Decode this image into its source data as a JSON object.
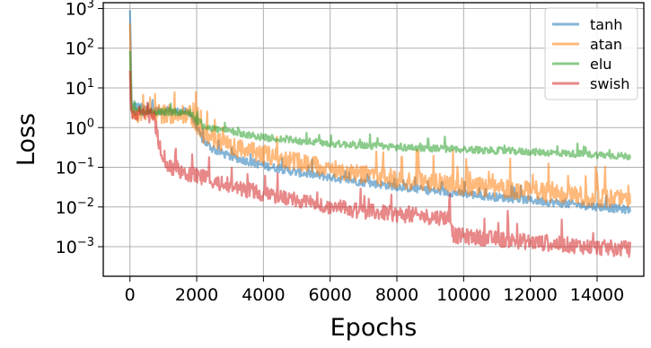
{
  "chart_data": {
    "type": "line",
    "xlabel": "Epochs",
    "ylabel": "Loss",
    "y_scale": "log",
    "xlim": [
      -800,
      15400
    ],
    "ylim": [
      0.00018,
      1400
    ],
    "xticks": [
      {
        "value": 0,
        "label": "0"
      },
      {
        "value": 2000,
        "label": "2000"
      },
      {
        "value": 4000,
        "label": "4000"
      },
      {
        "value": 6000,
        "label": "6000"
      },
      {
        "value": 8000,
        "label": "8000"
      },
      {
        "value": 10000,
        "label": "10000"
      },
      {
        "value": 12000,
        "label": "12000"
      },
      {
        "value": 14000,
        "label": "14000"
      }
    ],
    "yticks": [
      {
        "value": 0.001,
        "base": "10",
        "exp": "−3"
      },
      {
        "value": 0.01,
        "base": "10",
        "exp": "−2"
      },
      {
        "value": 0.1,
        "base": "10",
        "exp": "−1"
      },
      {
        "value": 1,
        "base": "10",
        "exp": "0"
      },
      {
        "value": 10,
        "base": "10",
        "exp": "1"
      },
      {
        "value": 100,
        "base": "10",
        "exp": "2"
      },
      {
        "value": 1000,
        "base": "10",
        "exp": "3"
      }
    ],
    "grid": true,
    "legend_position": "top-right",
    "series": [
      {
        "name": "tanh",
        "color": "#1f77b4",
        "x": [
          0,
          20,
          50,
          100,
          300,
          800,
          1500,
          1800,
          2000,
          2200,
          2500,
          3000,
          4000,
          5000,
          6000,
          7000,
          8000,
          9000,
          10000,
          11000,
          12000,
          13000,
          14000,
          15000
        ],
        "y": [
          900,
          200,
          3.5,
          3.8,
          3.5,
          2.8,
          2.7,
          2.6,
          1.0,
          0.5,
          0.3,
          0.2,
          0.12,
          0.08,
          0.06,
          0.045,
          0.035,
          0.028,
          0.023,
          0.019,
          0.016,
          0.013,
          0.011,
          0.009
        ],
        "noise": [
          1.6,
          1.6,
          1.6,
          1.6,
          1.6,
          1.6,
          1.6,
          1.6,
          1.6,
          1.6,
          1.6,
          1.6,
          1.6,
          1.6,
          1.6,
          1.6,
          1.6,
          1.6,
          1.6,
          1.6,
          1.6,
          1.6,
          1.6,
          1.6
        ]
      },
      {
        "name": "atan",
        "color": "#ff7f0e",
        "x": [
          0,
          20,
          50,
          100,
          300,
          800,
          1500,
          1800,
          2000,
          2200,
          2500,
          3000,
          4000,
          5000,
          6000,
          7000,
          8000,
          9000,
          10000,
          11000,
          12000,
          13000,
          14000,
          15000
        ],
        "y": [
          300,
          60,
          2.9,
          2.8,
          2.7,
          2.6,
          2.6,
          2.5,
          1.4,
          0.8,
          0.55,
          0.4,
          0.25,
          0.16,
          0.11,
          0.08,
          0.06,
          0.05,
          0.04,
          0.035,
          0.03,
          0.025,
          0.02,
          0.018
        ],
        "noise": [
          3.0,
          3.0,
          3.0,
          3.0,
          3.0,
          3.0,
          3.0,
          3.0,
          3.0,
          3.0,
          3.0,
          3.0,
          3.0,
          3.0,
          3.0,
          3.0,
          3.0,
          3.0,
          3.0,
          3.0,
          3.0,
          3.0,
          3.0,
          3.0
        ]
      },
      {
        "name": "elu",
        "color": "#2ca02c",
        "x": [
          0,
          20,
          50,
          100,
          300,
          800,
          1500,
          1800,
          2000,
          2200,
          2500,
          3000,
          4000,
          5000,
          6000,
          7000,
          8000,
          9000,
          10000,
          11000,
          12000,
          13000,
          14000,
          15000
        ],
        "y": [
          100,
          25,
          2.7,
          2.6,
          2.6,
          2.6,
          2.6,
          2.5,
          1.6,
          1.2,
          1.0,
          0.85,
          0.6,
          0.5,
          0.42,
          0.38,
          0.34,
          0.32,
          0.3,
          0.28,
          0.26,
          0.24,
          0.22,
          0.2
        ],
        "noise": [
          1.5,
          1.5,
          1.5,
          1.5,
          1.5,
          1.5,
          1.5,
          1.5,
          1.5,
          1.5,
          1.5,
          1.5,
          1.5,
          1.5,
          1.5,
          1.5,
          1.5,
          1.5,
          1.5,
          1.5,
          1.5,
          1.5,
          1.5,
          1.5
        ]
      },
      {
        "name": "swish",
        "color": "#d62728",
        "x": [
          0,
          20,
          50,
          100,
          300,
          700,
          800,
          900,
          1100,
          1300,
          1500,
          2000,
          3000,
          4000,
          5000,
          6000,
          7000,
          8000,
          9000,
          9600,
          9700,
          11000,
          12000,
          13000,
          14000,
          15000
        ],
        "y": [
          30,
          8,
          2.6,
          2.5,
          2.4,
          2.3,
          1.0,
          0.35,
          0.15,
          0.1,
          0.09,
          0.07,
          0.04,
          0.025,
          0.017,
          0.012,
          0.009,
          0.0075,
          0.0065,
          0.0062,
          0.0022,
          0.0018,
          0.0015,
          0.0013,
          0.0011,
          0.001
        ],
        "noise": [
          2.5,
          2.5,
          2.5,
          2.5,
          2.5,
          2.5,
          2.5,
          2.5,
          2.5,
          2.5,
          2.5,
          2.5,
          2.5,
          2.5,
          2.5,
          2.5,
          2.5,
          2.5,
          2.5,
          2.5,
          2.5,
          2.5,
          2.5,
          2.5,
          2.5,
          2.5
        ]
      }
    ]
  }
}
